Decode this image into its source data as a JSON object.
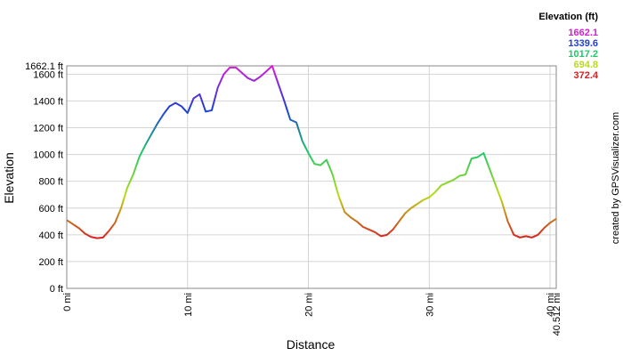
{
  "chart_data": {
    "type": "line",
    "x_label": "Distance",
    "y_label": "Elevation",
    "credit": "created by GPSVisualizer.com",
    "legend": {
      "title": "Elevation (ft)",
      "entries": [
        {
          "label": "1662.1",
          "value": 1662.1,
          "color": "#d81ad8"
        },
        {
          "label": "1339.6",
          "value": 1339.6,
          "color": "#1f3ed6"
        },
        {
          "label": "1017.2",
          "value": 1017.2,
          "color": "#1ec86a"
        },
        {
          "label": "694.8",
          "value": 694.8,
          "color": "#b8dc16"
        },
        {
          "label": "372.4",
          "value": 372.4,
          "color": "#d82020"
        }
      ]
    },
    "grid": true,
    "xlim": [
      0,
      40.512
    ],
    "xticks": [
      {
        "value": 0,
        "label": "0 mi"
      },
      {
        "value": 10,
        "label": "10 mi"
      },
      {
        "value": 20,
        "label": "20 mi"
      },
      {
        "value": 30,
        "label": "30 mi"
      },
      {
        "value": 40,
        "label": "40 mi"
      },
      {
        "value": 40.512,
        "label": "40.512 mi"
      }
    ],
    "ylim": [
      0,
      1662.1
    ],
    "yticks": [
      {
        "value": 0,
        "label": "0 ft"
      },
      {
        "value": 200,
        "label": "200 ft"
      },
      {
        "value": 400,
        "label": "400 ft"
      },
      {
        "value": 600,
        "label": "600 ft"
      },
      {
        "value": 800,
        "label": "800 ft"
      },
      {
        "value": 1000,
        "label": "1000 ft"
      },
      {
        "value": 1200,
        "label": "1200 ft"
      },
      {
        "value": 1400,
        "label": "1400 ft"
      },
      {
        "value": 1600,
        "label": "1600 ft"
      },
      {
        "value": 1662.1,
        "label": "1662.1 ft"
      }
    ],
    "x": [
      0,
      0.5,
      1,
      1.5,
      2,
      2.5,
      3,
      3.5,
      4,
      4.5,
      5,
      5.5,
      6,
      6.5,
      7,
      7.5,
      8,
      8.5,
      9,
      9.5,
      10,
      10.5,
      11,
      11.5,
      12,
      12.5,
      13,
      13.5,
      14,
      14.5,
      15,
      15.5,
      16,
      16.5,
      17,
      17.5,
      18,
      18.5,
      19,
      19.5,
      20,
      20.5,
      21,
      21.5,
      22,
      22.5,
      23,
      23.5,
      24,
      24.5,
      25,
      25.5,
      26,
      26.5,
      27,
      27.5,
      28,
      28.5,
      29,
      29.5,
      30,
      30.5,
      31,
      31.5,
      32,
      32.5,
      33,
      33.5,
      34,
      34.5,
      35,
      35.5,
      36,
      36.5,
      37,
      37.5,
      38,
      38.5,
      39,
      39.5,
      40,
      40.512
    ],
    "series": [
      {
        "name": "Elevation",
        "values": [
          510,
          480,
          450,
          410,
          385,
          375,
          380,
          430,
          490,
          600,
          750,
          850,
          980,
          1070,
          1150,
          1230,
          1300,
          1360,
          1385,
          1360,
          1310,
          1420,
          1450,
          1320,
          1330,
          1500,
          1600,
          1650,
          1650,
          1610,
          1570,
          1550,
          1580,
          1620,
          1662,
          1530,
          1400,
          1260,
          1240,
          1100,
          1010,
          930,
          920,
          960,
          850,
          690,
          570,
          530,
          500,
          460,
          440,
          420,
          390,
          400,
          440,
          500,
          560,
          600,
          630,
          660,
          680,
          720,
          770,
          790,
          810,
          840,
          850,
          970,
          980,
          1010,
          890,
          770,
          650,
          500,
          400,
          380,
          390,
          380,
          400,
          450,
          490,
          520
        ]
      }
    ]
  }
}
